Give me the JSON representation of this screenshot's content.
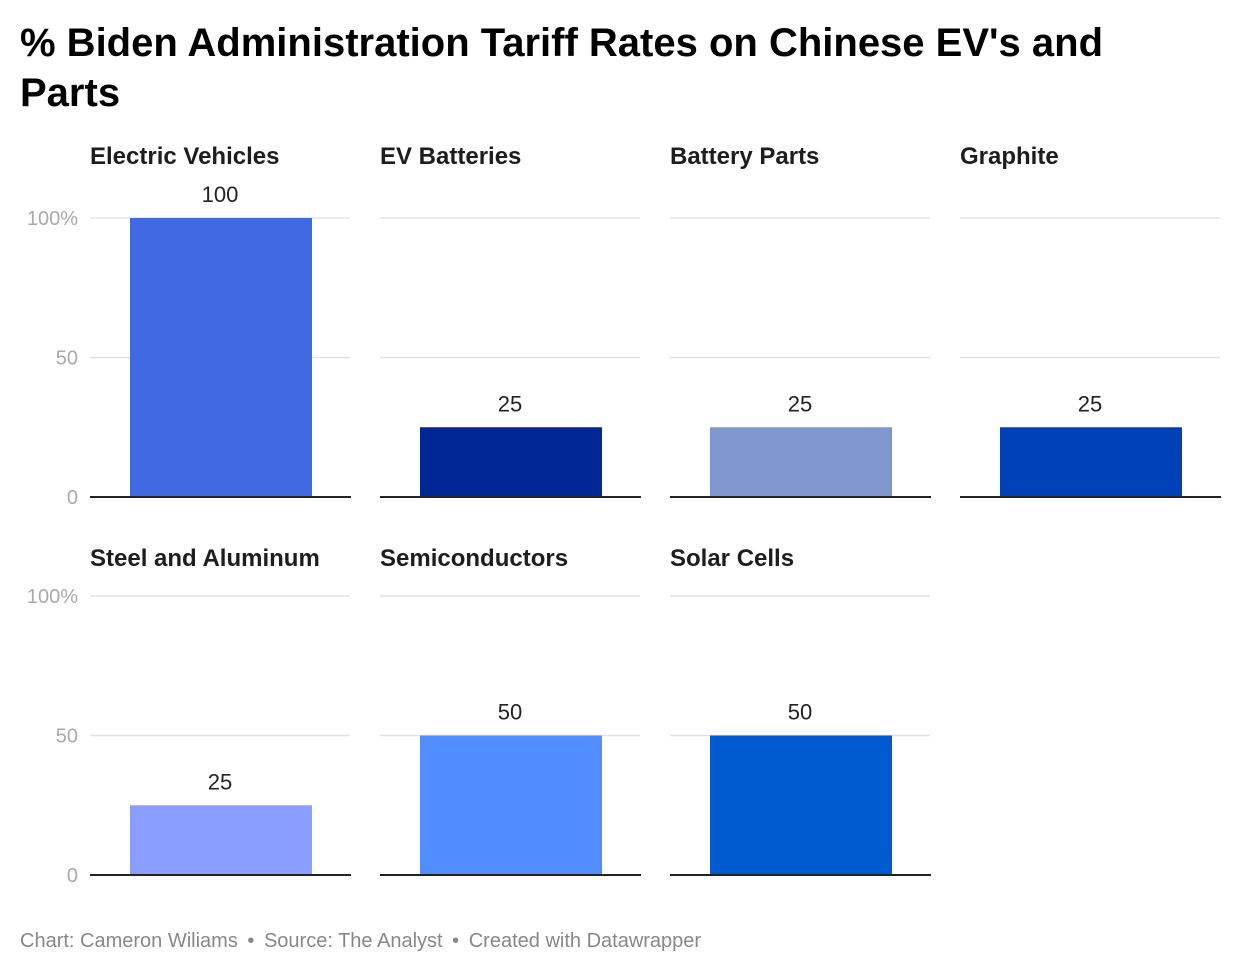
{
  "title": "% Biden Administration Tariff Rates on Chinese EV's and Parts",
  "footer": {
    "chart_credit": "Chart: Cameron Wiliams",
    "source": "Source: The Analyst",
    "created_with": "Created with Datawrapper",
    "separator": "•"
  },
  "chart_data": {
    "type": "bar",
    "layout": "small-multiples",
    "ylim": [
      0,
      100
    ],
    "yticks": [
      0,
      50,
      100
    ],
    "ytick_labels": [
      "0",
      "50",
      "100%"
    ],
    "grid": true,
    "panels": [
      {
        "title": "Electric Vehicles",
        "value": 100,
        "label": "100",
        "color": "#4169e1"
      },
      {
        "title": "EV Batteries",
        "value": 25,
        "label": "25",
        "color": "#002795"
      },
      {
        "title": "Battery Parts",
        "value": 25,
        "label": "25",
        "color": "#8096cf"
      },
      {
        "title": "Graphite",
        "value": 25,
        "label": "25",
        "color": "#0041b8"
      },
      {
        "title": "Steel and Aluminum",
        "value": 25,
        "label": "25",
        "color": "#8a9eff"
      },
      {
        "title": "Semiconductors",
        "value": 50,
        "label": "50",
        "color": "#528eff"
      },
      {
        "title": "Solar Cells",
        "value": 50,
        "label": "50",
        "color": "#005bd0"
      }
    ]
  }
}
